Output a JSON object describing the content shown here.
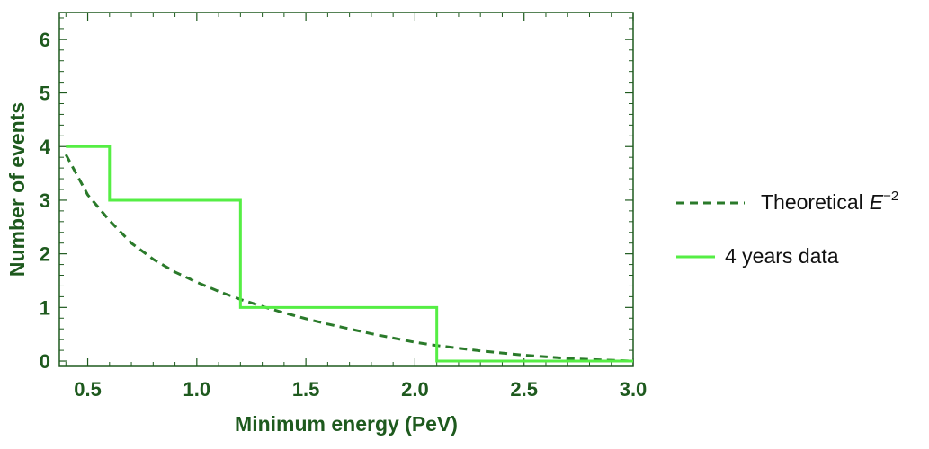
{
  "chart_data": {
    "type": "line",
    "xlabel": "Minimum energy (PeV)",
    "ylabel": "Number of events",
    "xlim": [
      0.37,
      3.0
    ],
    "ylim": [
      -0.1,
      6.5
    ],
    "x_ticks": [
      0.5,
      1.0,
      1.5,
      2.0,
      2.5,
      3.0
    ],
    "x_tick_labels": [
      "0.5",
      "1.0",
      "1.5",
      "2.0",
      "2.5",
      "3.0"
    ],
    "y_ticks": [
      0,
      1,
      2,
      3,
      4,
      5,
      6
    ],
    "y_tick_labels": [
      "0",
      "1",
      "2",
      "3",
      "4",
      "5",
      "6"
    ],
    "legend_position": "right",
    "series": [
      {
        "name": "Theoretical E^-2",
        "legend_text": "Theoretical",
        "legend_var": "E",
        "legend_sup": "−2",
        "style": "dashed",
        "color": "#2a7a2a",
        "x": [
          0.4,
          0.5,
          0.6,
          0.7,
          0.8,
          0.9,
          1.0,
          1.1,
          1.2,
          1.3,
          1.4,
          1.5,
          1.6,
          1.7,
          1.8,
          1.9,
          2.0,
          2.1,
          2.2,
          2.3,
          2.4,
          2.5,
          2.6,
          2.7,
          2.8,
          2.9,
          3.0
        ],
        "y": [
          3.85,
          3.1,
          2.62,
          2.2,
          1.9,
          1.66,
          1.47,
          1.3,
          1.15,
          1.02,
          0.9,
          0.79,
          0.69,
          0.6,
          0.51,
          0.43,
          0.35,
          0.29,
          0.24,
          0.19,
          0.15,
          0.11,
          0.08,
          0.05,
          0.03,
          0.015,
          0.0
        ]
      },
      {
        "name": "4 years data",
        "legend_text": "4 years data",
        "style": "step",
        "color": "#55ee44",
        "x": [
          0.4,
          0.6,
          0.6,
          1.2,
          1.2,
          2.1,
          2.1,
          3.0
        ],
        "y": [
          4,
          4,
          3,
          3,
          1,
          1,
          0,
          0
        ]
      }
    ]
  }
}
